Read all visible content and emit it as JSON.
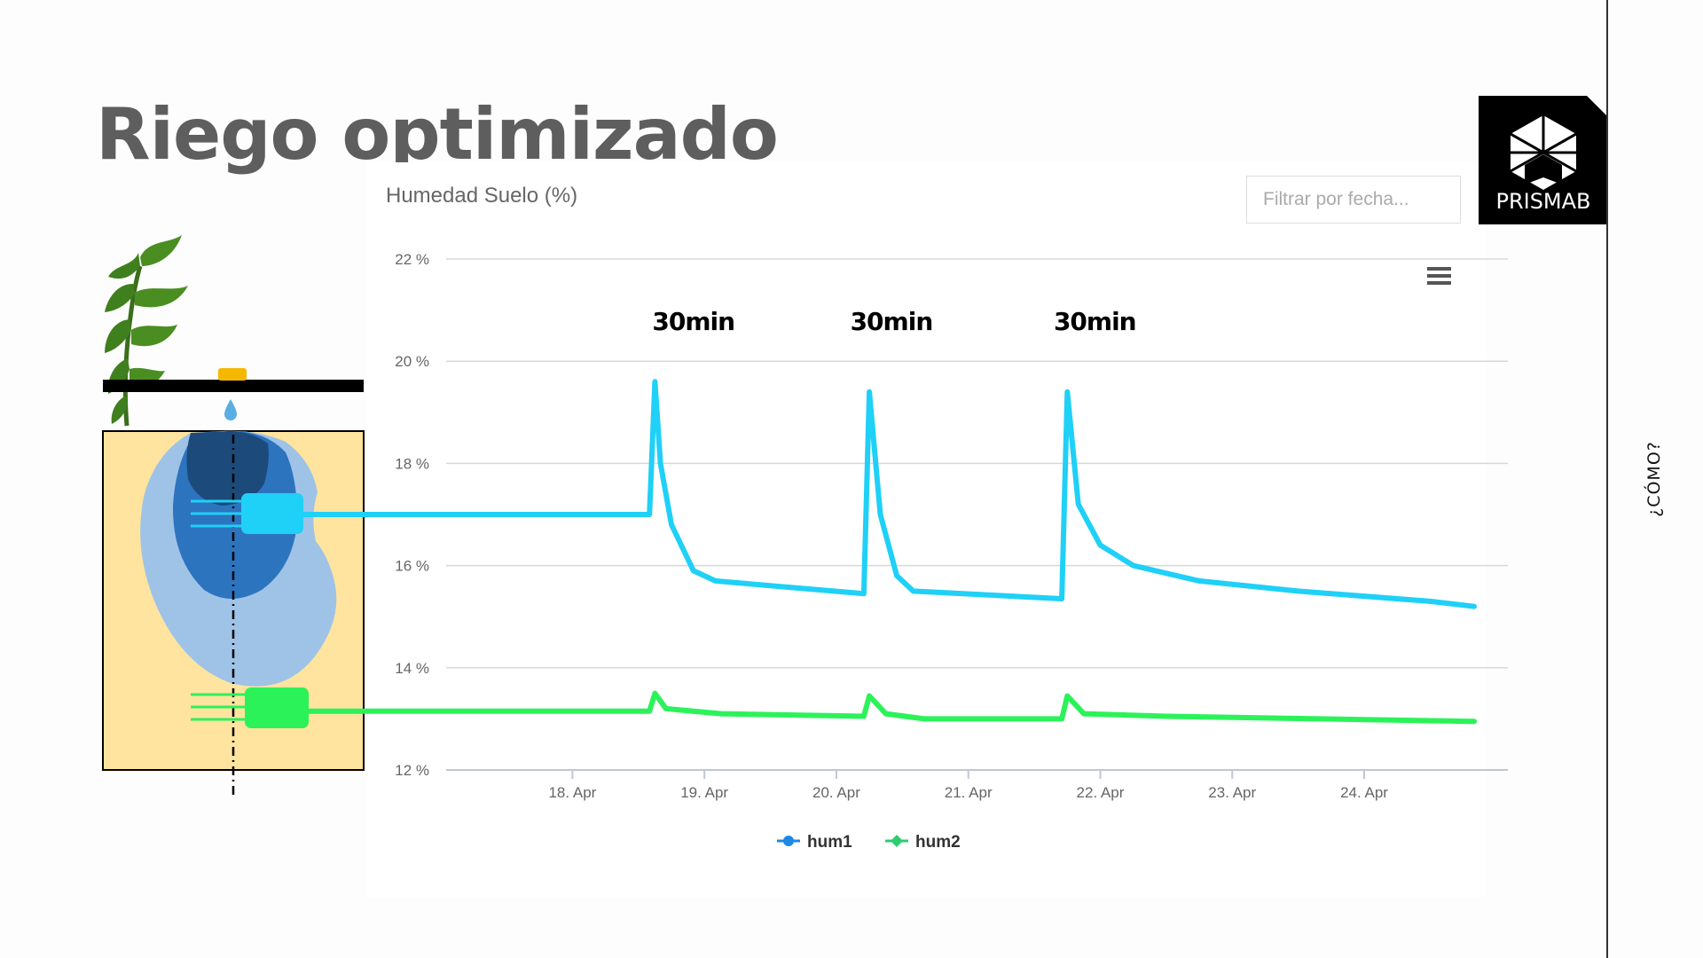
{
  "slide": {
    "title": "Riego optimizado",
    "side_label": "¿CÓMO?"
  },
  "logo": {
    "text": "PRISMAB"
  },
  "filter": {
    "placeholder": "Filtrar por fecha..."
  },
  "colors": {
    "hum1": "#1fd0f7",
    "hum2": "#2cf25a",
    "legend_hum1": "#1e88e5",
    "legend_hum2": "#2ecc71",
    "soil": "#ffe49f",
    "bulb_outer": "#9fc3e7",
    "bulb_mid": "#2d74bf",
    "bulb_inner": "#1c4a7a",
    "dripper": "#f5b800"
  },
  "icons": {
    "menu": "hamburger-menu-icon",
    "plant": "plant-icon",
    "drop": "water-drop-icon"
  },
  "chart_data": {
    "type": "line",
    "title": "Humedad Suelo (%)",
    "ylim": [
      12,
      22
    ],
    "y_ticks": [
      12,
      14,
      16,
      18,
      20,
      22
    ],
    "y_tick_format": "{v} %",
    "x_ticks": [
      "18. Apr",
      "19. Apr",
      "20. Apr",
      "21. Apr",
      "22. Apr",
      "23. Apr",
      "24. Apr"
    ],
    "x_range": [
      "2019-04-17 07:00",
      "2019-04-24 20:00"
    ],
    "grid": true,
    "legend_position": "bottom-center",
    "annotations": [
      {
        "text": "30min",
        "x": "2019-04-18 22:00"
      },
      {
        "text": "30min",
        "x": "2019-04-20 10:00"
      },
      {
        "text": "30min",
        "x": "2019-04-21 23:00"
      }
    ],
    "series": [
      {
        "name": "hum1",
        "points": [
          [
            "2019-04-17 07:00",
            17.0
          ],
          [
            "2019-04-18 14:00",
            17.0
          ],
          [
            "2019-04-18 15:00",
            19.6
          ],
          [
            "2019-04-18 16:00",
            18.0
          ],
          [
            "2019-04-18 18:00",
            16.8
          ],
          [
            "2019-04-18 22:00",
            15.9
          ],
          [
            "2019-04-19 02:00",
            15.7
          ],
          [
            "2019-04-20 05:00",
            15.45
          ],
          [
            "2019-04-20 06:00",
            19.4
          ],
          [
            "2019-04-20 08:00",
            17.0
          ],
          [
            "2019-04-20 11:00",
            15.8
          ],
          [
            "2019-04-20 14:00",
            15.5
          ],
          [
            "2019-04-21 17:00",
            15.35
          ],
          [
            "2019-04-21 18:00",
            19.4
          ],
          [
            "2019-04-21 20:00",
            17.2
          ],
          [
            "2019-04-22 00:00",
            16.4
          ],
          [
            "2019-04-22 06:00",
            16.0
          ],
          [
            "2019-04-22 18:00",
            15.7
          ],
          [
            "2019-04-23 12:00",
            15.5
          ],
          [
            "2019-04-24 12:00",
            15.3
          ],
          [
            "2019-04-24 20:00",
            15.2
          ]
        ]
      },
      {
        "name": "hum2",
        "points": [
          [
            "2019-04-17 07:00",
            13.15
          ],
          [
            "2019-04-18 14:00",
            13.15
          ],
          [
            "2019-04-18 15:00",
            13.5
          ],
          [
            "2019-04-18 17:00",
            13.2
          ],
          [
            "2019-04-19 03:00",
            13.1
          ],
          [
            "2019-04-20 05:00",
            13.05
          ],
          [
            "2019-04-20 06:00",
            13.45
          ],
          [
            "2019-04-20 09:00",
            13.1
          ],
          [
            "2019-04-20 16:00",
            13.0
          ],
          [
            "2019-04-21 17:00",
            13.0
          ],
          [
            "2019-04-21 18:00",
            13.45
          ],
          [
            "2019-04-21 21:00",
            13.1
          ],
          [
            "2019-04-22 12:00",
            13.05
          ],
          [
            "2019-04-24 20:00",
            12.95
          ]
        ]
      }
    ]
  }
}
